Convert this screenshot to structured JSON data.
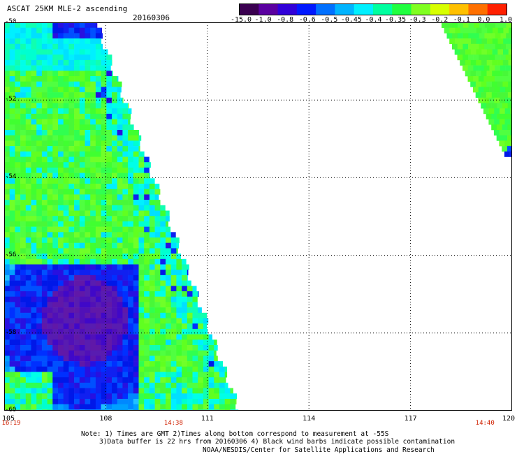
{
  "header": {
    "title": "ASCAT 25KM MLE-2 ascending",
    "date": "20160306"
  },
  "colorbar": {
    "ticks": [
      "-15.0",
      "-1.0",
      "-0.8",
      "-0.6",
      "-0.5",
      "-0.45",
      "-0.4",
      "-0.35",
      "-0.3",
      "-0.2",
      "-0.1",
      "0.0",
      "1.0"
    ],
    "colors": [
      "#3a0050",
      "#5a00a0",
      "#3000d8",
      "#0018ff",
      "#0070ff",
      "#00b4ff",
      "#00f0ff",
      "#00ffa0",
      "#20ff40",
      "#80ff20",
      "#d8ff00",
      "#ffc000",
      "#ff7000",
      "#ff2000"
    ]
  },
  "axes": {
    "lon_labels": [
      "105",
      "108",
      "111",
      "114",
      "117",
      "120"
    ],
    "lat_labels": [
      "-50",
      "-52",
      "-54",
      "-56",
      "-58",
      "-60"
    ],
    "lon_range": [
      105,
      120
    ],
    "lat_range": [
      -50,
      -60
    ]
  },
  "times": [
    {
      "label": "16:19",
      "lon": 105
    },
    {
      "label": "14:38",
      "lon": 110
    },
    {
      "label": "14:40",
      "lon": 119.2
    }
  ],
  "notes": {
    "line1": "Note: 1) Times are GMT 2)Times along bottom correspond to measurement at -55S",
    "line2": "3)Data buffer is 22 hrs from 20160306 4) Black wind barbs indicate possible contamination",
    "line3": "NOAA/NESDIS/Center for Satellite Applications and Research"
  }
}
